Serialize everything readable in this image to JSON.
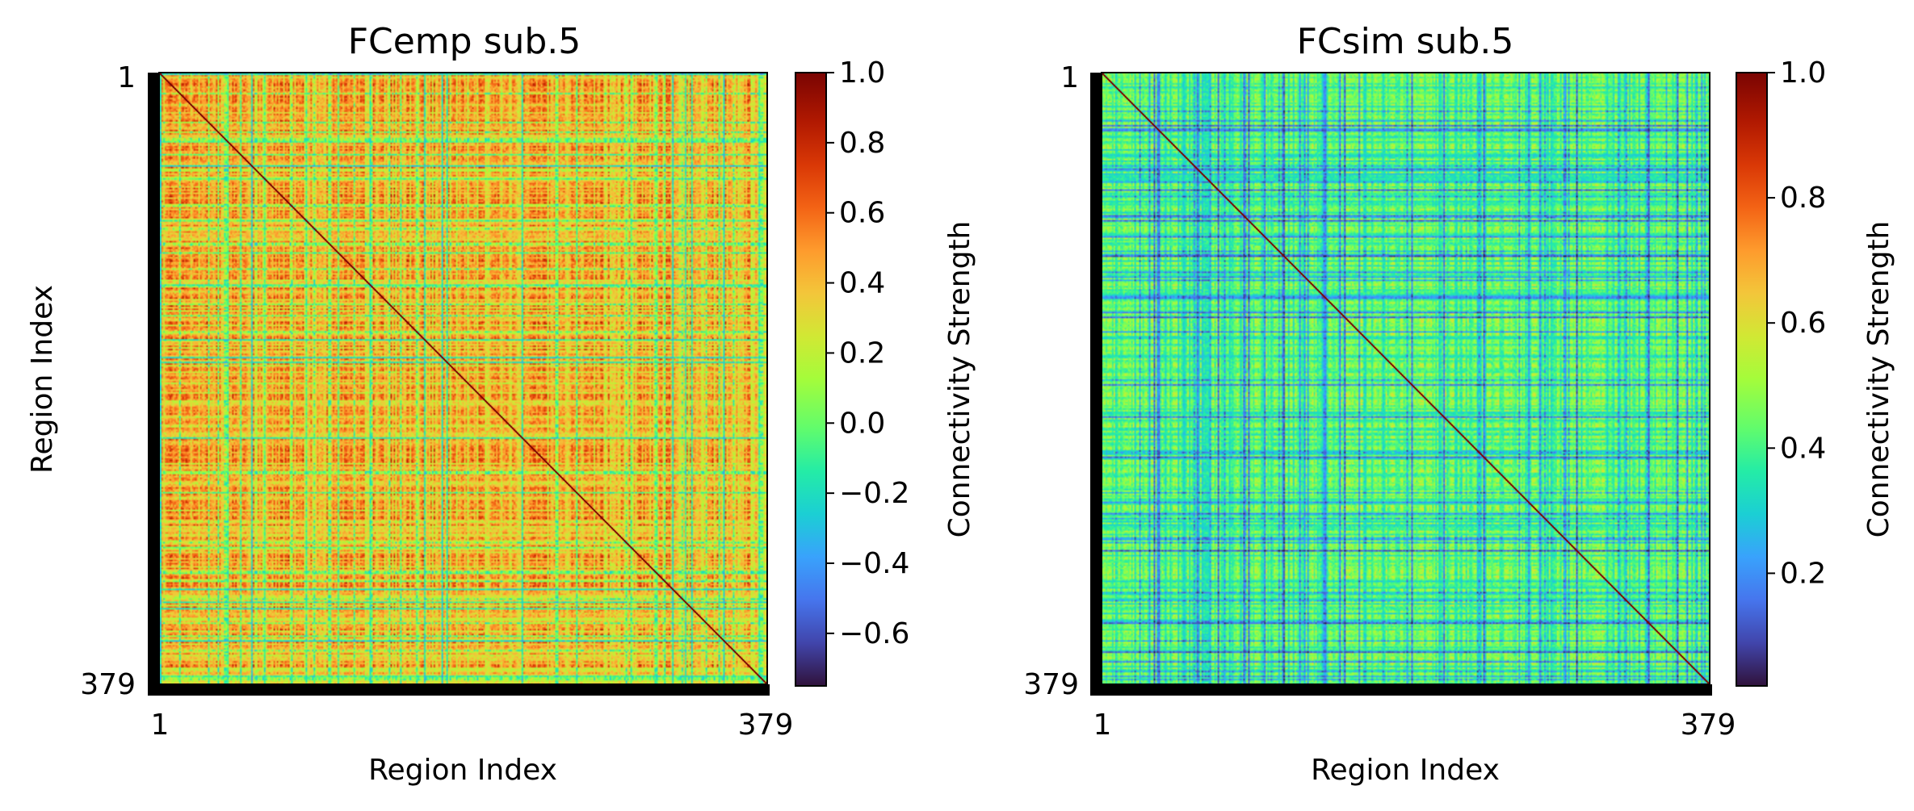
{
  "chart_data": [
    {
      "type": "heatmap",
      "title": "FCemp sub.5",
      "xlabel": "Region Index",
      "ylabel": "Region Index",
      "x_ticks": [
        "1",
        "379"
      ],
      "y_ticks": [
        "1",
        "379"
      ],
      "n_regions": 379,
      "colormap": "turbo",
      "colorbar": {
        "label": "Connectivity Strength",
        "vmin": -0.75,
        "vmax": 1.0,
        "ticks": [
          1.0,
          0.8,
          0.6,
          0.4,
          0.2,
          0.0,
          -0.2,
          -0.4,
          -0.6
        ],
        "tick_labels": [
          "1.0",
          "0.8",
          "0.6",
          "0.4",
          "0.2",
          "0.0",
          "−0.2",
          "−0.4",
          "−0.6"
        ]
      },
      "value_summary": {
        "diagonal": 1.0,
        "typical_offdiagonal": [
          0.2,
          0.85
        ]
      }
    },
    {
      "type": "heatmap",
      "title": "FCsim sub.5",
      "xlabel": "Region Index",
      "ylabel": "",
      "x_ticks": [
        "1",
        "379"
      ],
      "y_ticks": [
        "1",
        "379"
      ],
      "n_regions": 379,
      "colormap": "turbo",
      "colorbar": {
        "label": "Connectivity Strength",
        "vmin": 0.02,
        "vmax": 1.0,
        "ticks": [
          1.0,
          0.8,
          0.6,
          0.4,
          0.2
        ],
        "tick_labels": [
          "1.0",
          "0.8",
          "0.6",
          "0.4",
          "0.2"
        ]
      },
      "value_summary": {
        "diagonal": 1.0,
        "typical_offdiagonal": [
          0.1,
          0.6
        ]
      }
    }
  ]
}
